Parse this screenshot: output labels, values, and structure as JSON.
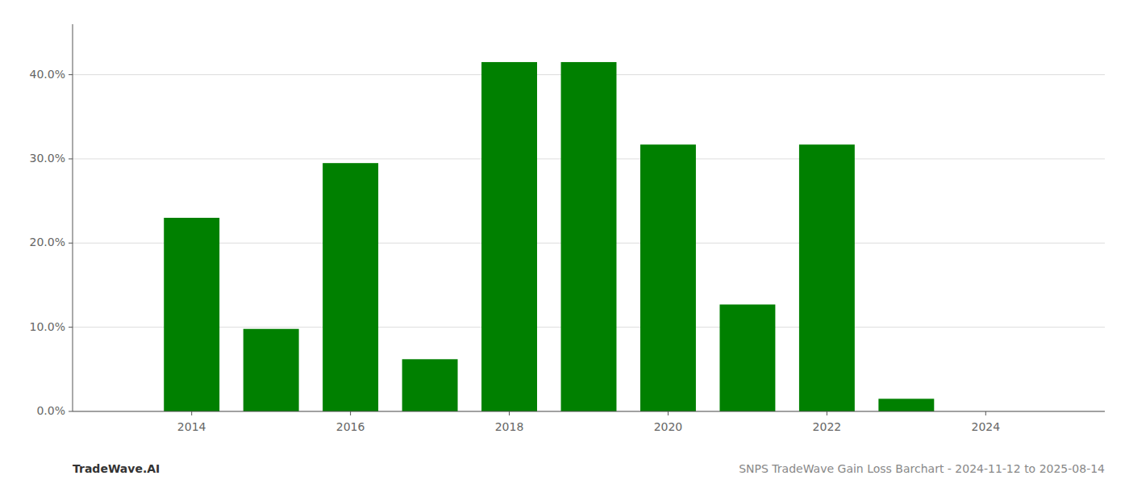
{
  "chart_data": {
    "type": "bar",
    "x": [
      2014,
      2015,
      2016,
      2017,
      2018,
      2019,
      2020,
      2021,
      2022,
      2023,
      2024
    ],
    "values": [
      0.23,
      0.098,
      0.295,
      0.062,
      0.415,
      0.415,
      0.317,
      0.127,
      0.317,
      0.015,
      0.0
    ],
    "color": "#008000",
    "xlim": [
      2012.5,
      2025.5
    ],
    "xticks": [
      2014,
      2016,
      2018,
      2020,
      2022,
      2024
    ],
    "ylim": [
      0,
      0.46
    ],
    "yticks": [
      {
        "value": 0.0,
        "label": "0.0%"
      },
      {
        "value": 0.1,
        "label": "10.0%"
      },
      {
        "value": 0.2,
        "label": "20.0%"
      },
      {
        "value": 0.3,
        "label": "30.0%"
      },
      {
        "value": 0.4,
        "label": "40.0%"
      }
    ],
    "grid": true,
    "annotations": [
      "TradeWave.AI",
      "SNPS TradeWave Gain Loss Barchart - 2024-11-12 to 2025-08-14"
    ]
  }
}
